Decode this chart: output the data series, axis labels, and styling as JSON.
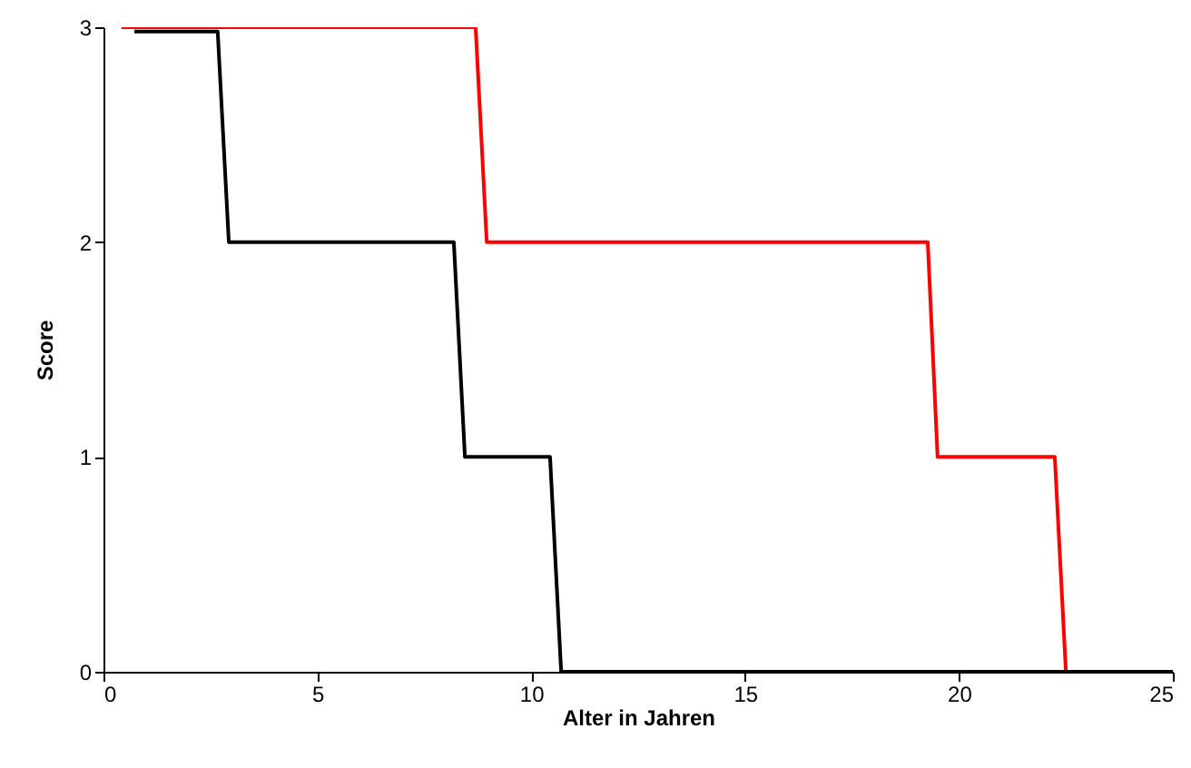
{
  "chart_data": {
    "type": "line",
    "xlabel": "Alter in Jahren",
    "ylabel": "Score",
    "xlim": [
      0,
      25
    ],
    "ylim": [
      0,
      3
    ],
    "xticks": [
      0,
      5,
      10,
      15,
      20,
      25
    ],
    "yticks": [
      0,
      1,
      2,
      3
    ],
    "grid": false,
    "marker": "none",
    "line_style": "solid",
    "series": [
      {
        "color": "#ff0000",
        "x": [
          0.42,
          8.7,
          8.96,
          19.27,
          19.5,
          22.24,
          22.5,
          25
        ],
        "values": [
          3,
          3,
          2,
          2,
          1,
          1,
          0,
          0
        ]
      },
      {
        "color": "#000000",
        "x": [
          0.72,
          2.67,
          2.93,
          8.19,
          8.45,
          10.44,
          10.7,
          25
        ],
        "values": [
          2.98,
          2.98,
          2,
          2,
          1,
          1,
          0,
          0
        ]
      }
    ]
  }
}
